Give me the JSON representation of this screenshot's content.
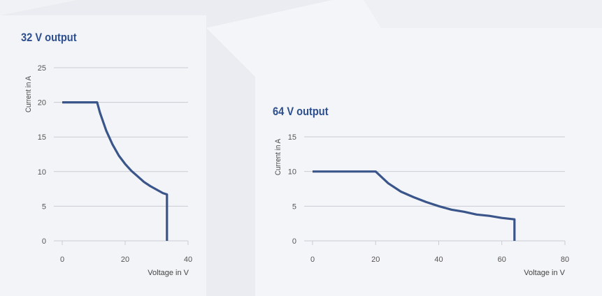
{
  "colors": {
    "line": "#3a558a",
    "grid": "#c9ccd3",
    "title": "#2d4f8f"
  },
  "chart_data": [
    {
      "type": "line",
      "title": "32 V output",
      "xlabel": "Voltage in V",
      "ylabel": "Current in A",
      "xlim": [
        0,
        40
      ],
      "ylim": [
        0,
        25
      ],
      "xticks": [
        0,
        20,
        40
      ],
      "yticks": [
        0,
        5,
        10,
        15,
        20,
        25
      ],
      "grid": true,
      "series": [
        {
          "x": [
            0,
            11.1,
            12,
            14,
            16,
            18,
            20,
            22,
            24,
            26,
            28,
            30,
            32,
            33.3,
            33.3
          ],
          "y": [
            20,
            20,
            18.5,
            15.9,
            13.9,
            12.3,
            11.1,
            10.1,
            9.3,
            8.5,
            7.9,
            7.4,
            6.9,
            6.7,
            0
          ]
        }
      ]
    },
    {
      "type": "line",
      "title": "64 V output",
      "xlabel": "Voltage in V",
      "ylabel": "Current in A",
      "xlim": [
        0,
        80
      ],
      "ylim": [
        0,
        15
      ],
      "xticks": [
        0,
        20,
        40,
        60,
        80
      ],
      "yticks": [
        0,
        5,
        10,
        15
      ],
      "grid": true,
      "series": [
        {
          "x": [
            0,
            20,
            24,
            28,
            32,
            36,
            40,
            44,
            48,
            52,
            56,
            60,
            64,
            64
          ],
          "y": [
            10,
            10,
            8.3,
            7.1,
            6.3,
            5.6,
            5,
            4.5,
            4.2,
            3.8,
            3.6,
            3.3,
            3.1,
            0
          ]
        }
      ]
    }
  ]
}
